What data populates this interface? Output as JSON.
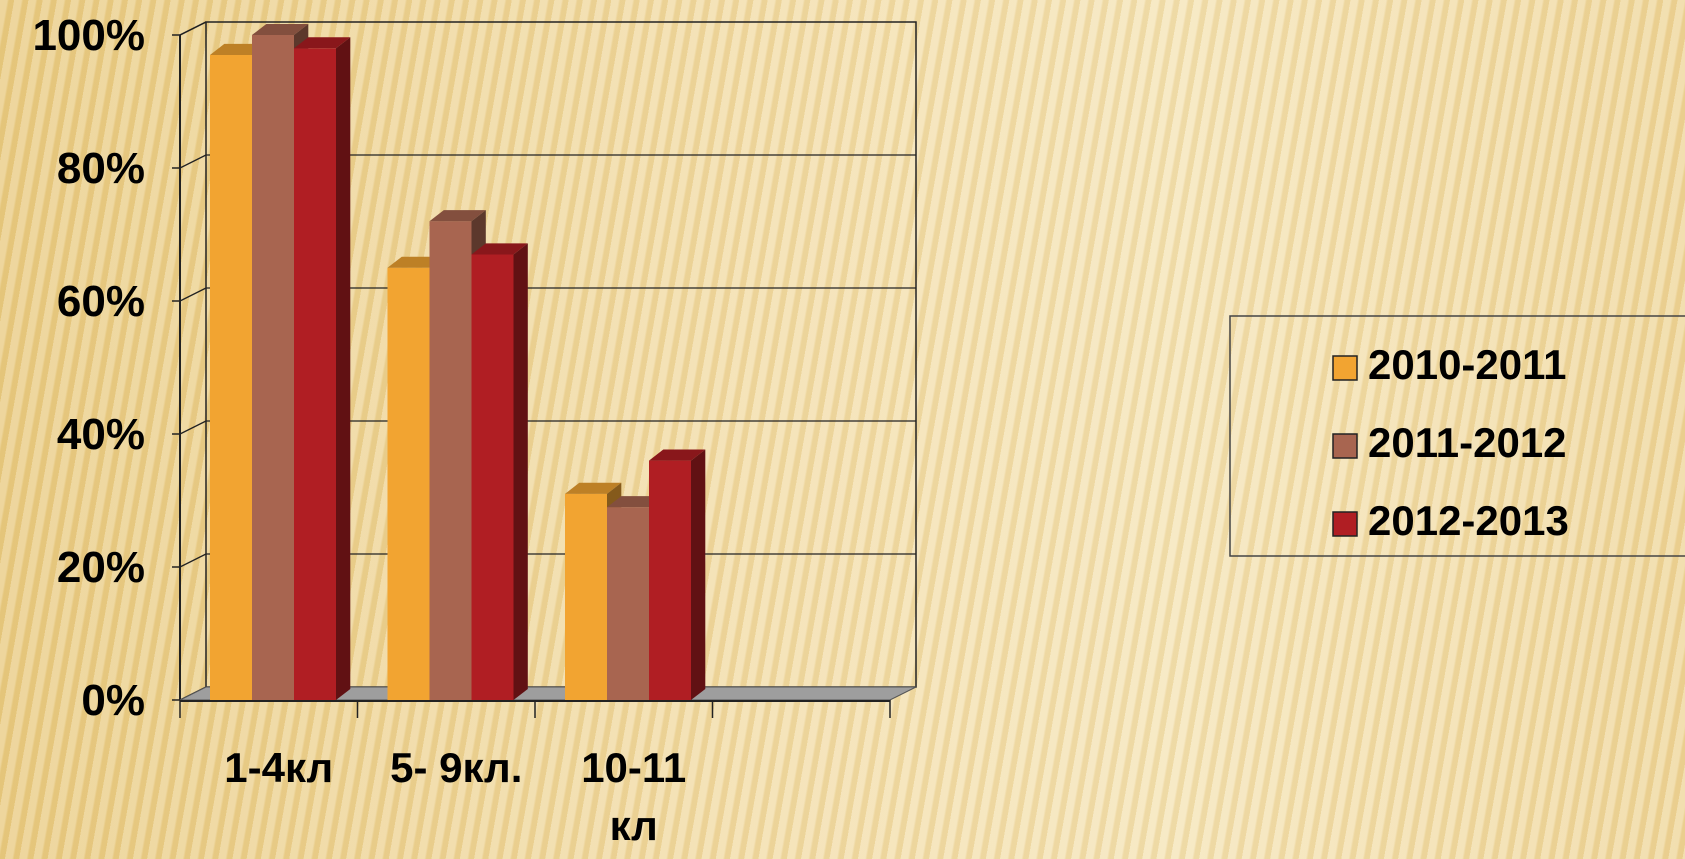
{
  "chart_data": {
    "type": "bar",
    "categories": [
      "1-4кл",
      "5- 9кл.",
      "10-11 кл"
    ],
    "series": [
      {
        "name": "2010-2011",
        "values": [
          97,
          65,
          31
        ],
        "color": "#f2a431"
      },
      {
        "name": "2011-2012",
        "values": [
          100,
          72,
          29
        ],
        "color": "#a86550"
      },
      {
        "name": "2012-2013",
        "values": [
          98,
          67,
          36
        ],
        "color": "#b01e23"
      }
    ],
    "yticks": [
      "0%",
      "20%",
      "40%",
      "60%",
      "80%",
      "100%"
    ],
    "ylim": [
      0,
      100
    ],
    "grid": true,
    "legend": "right"
  }
}
